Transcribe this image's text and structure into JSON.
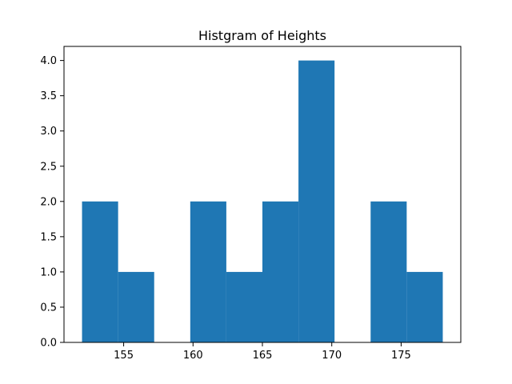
{
  "chart_data": {
    "type": "bar",
    "title": "Histgram of Heights",
    "xlabel": "",
    "ylabel": "",
    "bin_edges": [
      152,
      154.6,
      157.2,
      159.8,
      162.4,
      165,
      167.6,
      170.2,
      172.8,
      175.4,
      178
    ],
    "counts": [
      2,
      1,
      0,
      2,
      1,
      2,
      4,
      0,
      2,
      1
    ],
    "xlim": [
      150.7,
      179.3
    ],
    "ylim": [
      0,
      4.2
    ],
    "x_ticks": [
      155,
      160,
      165,
      170,
      175
    ],
    "x_tick_labels": [
      "155",
      "160",
      "165",
      "170",
      "175"
    ],
    "y_ticks": [
      0,
      0.5,
      1,
      1.5,
      2,
      2.5,
      3,
      3.5,
      4
    ],
    "y_tick_labels": [
      "0.0",
      "0.5",
      "1.0",
      "1.5",
      "2.0",
      "2.5",
      "3.0",
      "3.5",
      "4.0"
    ],
    "bar_color": "#1f77b4",
    "grid": false,
    "legend": "none"
  }
}
